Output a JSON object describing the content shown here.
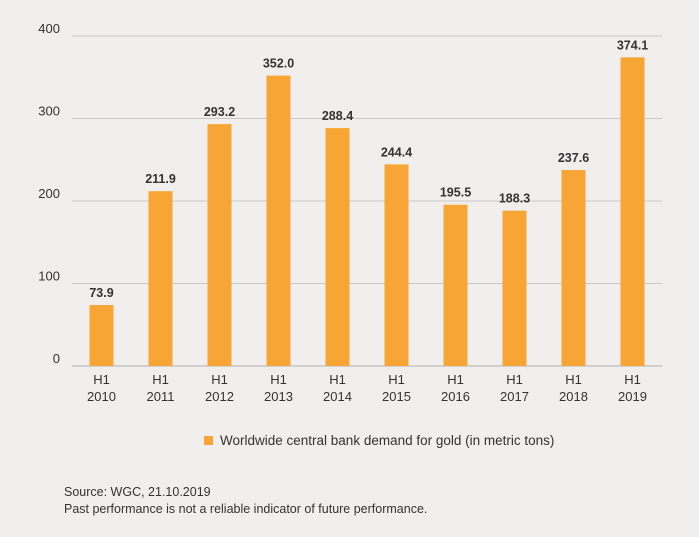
{
  "chart_data": {
    "type": "bar",
    "categories": [
      [
        "H1",
        "2010"
      ],
      [
        "H1",
        "2011"
      ],
      [
        "H1",
        "2012"
      ],
      [
        "H1",
        "2013"
      ],
      [
        "H1",
        "2014"
      ],
      [
        "H1",
        "2015"
      ],
      [
        "H1",
        "2016"
      ],
      [
        "H1",
        "2017"
      ],
      [
        "H1",
        "2018"
      ],
      [
        "H1",
        "2019"
      ]
    ],
    "values": [
      73.9,
      211.9,
      293.2,
      352.0,
      288.4,
      244.4,
      195.5,
      188.3,
      237.6,
      374.1
    ],
    "value_labels": [
      "73.9",
      "211.9",
      "293.2",
      "352.0",
      "288.4",
      "244.4",
      "195.5",
      "188.3",
      "237.6",
      "374.1"
    ],
    "ylim": [
      0,
      400
    ],
    "yticks": [
      0,
      100,
      200,
      300,
      400
    ],
    "grid": true,
    "legend": "Worldwide central bank demand for gold (in metric tons)",
    "colors": {
      "bar": "#f7a534",
      "grid": "#bdbdbd",
      "text": "#333333"
    }
  },
  "source": {
    "line1": "Source: WGC, 21.10.2019",
    "line2": "Past performance is not a reliable indicator of future performance."
  }
}
